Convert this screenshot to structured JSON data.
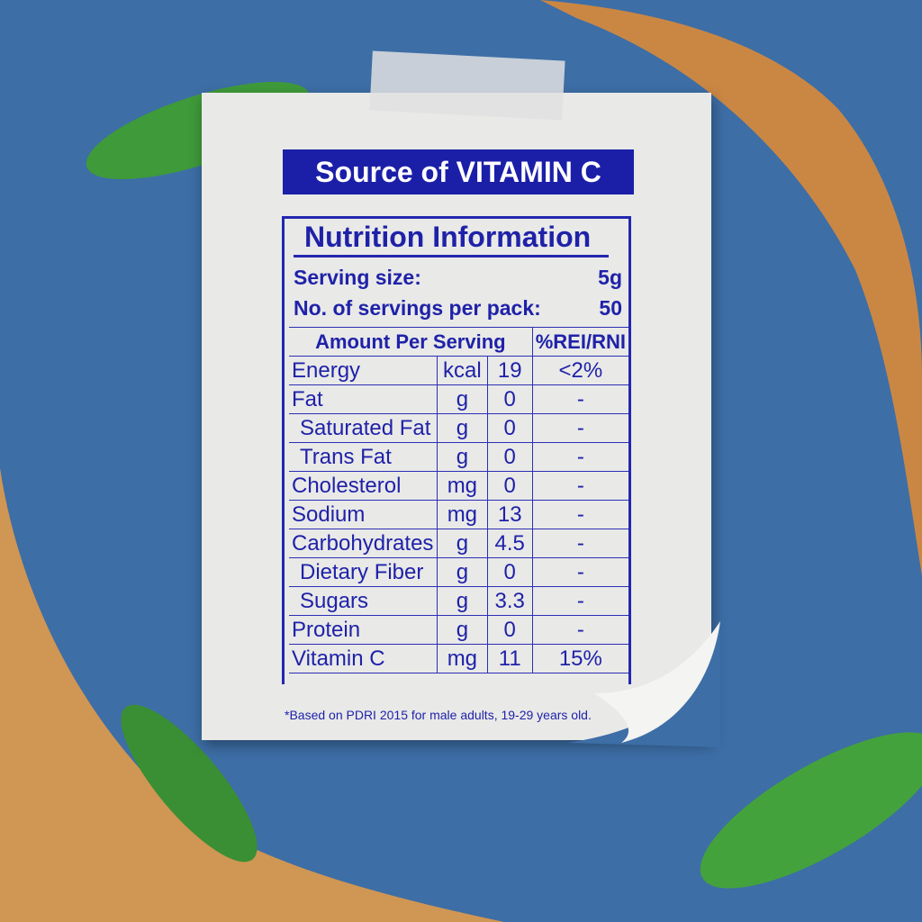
{
  "banner": "Source of VITAMIN C",
  "title": "Nutrition Information",
  "serving": {
    "label": "Serving size:",
    "value": "5g"
  },
  "servings_per_pack": {
    "label": "No. of servings per pack:",
    "value": "50"
  },
  "headers": {
    "amount": "Amount Per Serving",
    "rni": "%REI/RNI"
  },
  "rows": [
    {
      "name": "Energy",
      "unit": "kcal",
      "value": "19",
      "rni": "<2%"
    },
    {
      "name": "Fat",
      "unit": "g",
      "value": "0",
      "rni": "-"
    },
    {
      "name": "Saturated Fat",
      "unit": "g",
      "value": "0",
      "rni": "-",
      "indent": true
    },
    {
      "name": "Trans Fat",
      "unit": "g",
      "value": "0",
      "rni": "-",
      "indent": true
    },
    {
      "name": "Cholesterol",
      "unit": "mg",
      "value": "0",
      "rni": "-"
    },
    {
      "name": "Sodium",
      "unit": "mg",
      "value": "13",
      "rni": "-"
    },
    {
      "name": "Carbohydrates",
      "unit": "g",
      "value": "4.5",
      "rni": "-"
    },
    {
      "name": "Dietary Fiber",
      "unit": "g",
      "value": "0",
      "rni": "-",
      "indent": true
    },
    {
      "name": "Sugars",
      "unit": "g",
      "value": "3.3",
      "rni": "-",
      "indent": true
    },
    {
      "name": "Protein",
      "unit": "g",
      "value": "0",
      "rni": "-"
    },
    {
      "name": "Vitamin C",
      "unit": "mg",
      "value": "11",
      "rni": "15%"
    }
  ],
  "footnote": "*Based on PDRI 2015 for male adults, 19-29 years old.",
  "colors": {
    "background": "#3d6ea6",
    "ink": "#1f22a8",
    "paper": "#e9e9e8",
    "splash": "#d98a3a",
    "leaf": "#3f9a3a"
  }
}
